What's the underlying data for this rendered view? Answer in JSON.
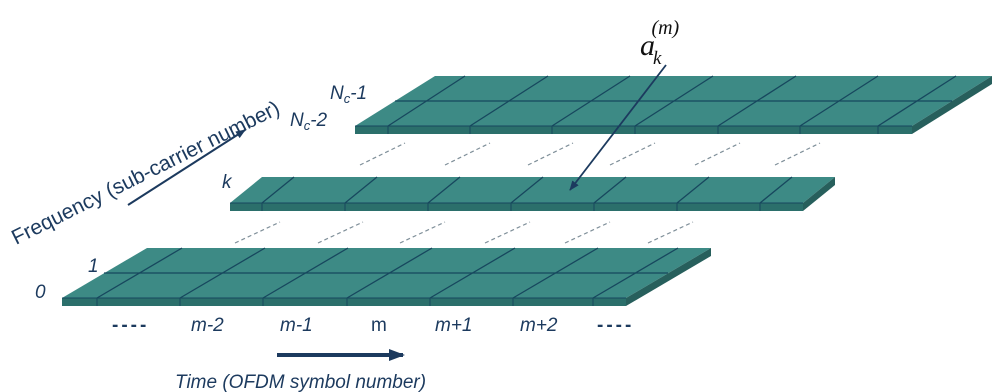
{
  "frequency_axis": {
    "label": "Frequency (sub-carrier number)"
  },
  "time_axis": {
    "label": "Time (OFDM symbol number)"
  },
  "subcarriers": {
    "label_0": "0",
    "label_1": "1",
    "label_k": "k",
    "label_nc2_base": "N",
    "label_nc2_sub": "c",
    "label_nc2_tail": "-2",
    "label_nc1_base": "N",
    "label_nc1_sub": "c",
    "label_nc1_tail": "-1"
  },
  "symbols": {
    "dashes_left": "----",
    "m_minus_2": "m-2",
    "m_minus_1": "m-1",
    "m": "m",
    "m_plus_1": "m+1",
    "m_plus_2": "m+2",
    "dashes_right": "----"
  },
  "annotation": {
    "base": "a",
    "sub": "k",
    "sup": "(m)"
  },
  "colors": {
    "plate_top": "#3d8a85",
    "plate_side": "#2b6f6b",
    "grid": "#17475e",
    "text": "#1c3a5e"
  }
}
